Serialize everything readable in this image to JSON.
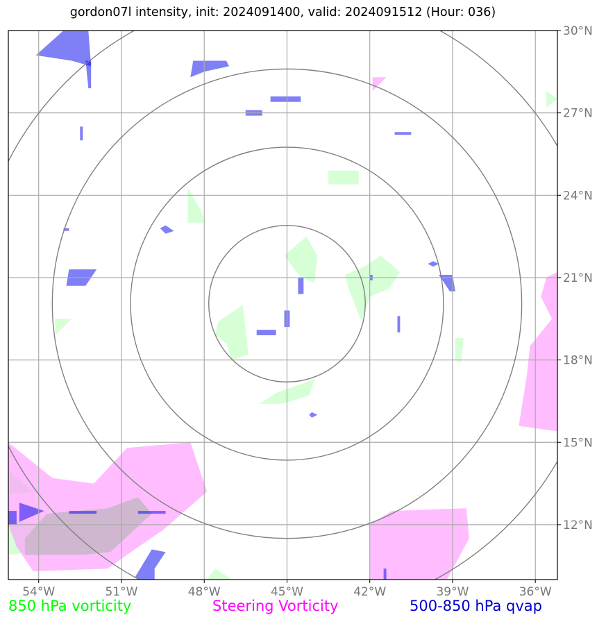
{
  "title": "gordon07l intensity, init: 2024091400, valid: 2024091512 (Hour: 036)",
  "legend": {
    "vort850": "850 hPa vorticity",
    "steering": "Steering Vorticity",
    "qvap": "500-850 hPa qvap"
  },
  "colors": {
    "vort850": "#ccffcc",
    "steering": "#ff99ff",
    "qvap": "#0000ee",
    "grid": "#aaaaaa",
    "rings": "#808080"
  },
  "chart_data": {
    "type": "map",
    "lon_range": [
      -55.1,
      -35.2
    ],
    "lat_range": [
      10.0,
      30.0
    ],
    "x_ticks": [
      "54°W",
      "51°W",
      "48°W",
      "45°W",
      "42°W",
      "39°W",
      "36°W"
    ],
    "x_tick_values": [
      -54,
      -51,
      -48,
      -45,
      -42,
      -39,
      -36
    ],
    "y_ticks": [
      "30°N",
      "27°N",
      "24°N",
      "21°N",
      "18°N",
      "15°N",
      "12°N"
    ],
    "y_tick_values": [
      30,
      27,
      24,
      21,
      18,
      15,
      12
    ],
    "grid": true,
    "center": [
      -45.0,
      20.05
    ],
    "range_rings_deg_lat": [
      2.85,
      5.7,
      8.55,
      11.4
    ],
    "fields": {
      "steering": [
        [
          [
            -55.1,
            15.0
          ],
          [
            -53.5,
            13.7
          ],
          [
            -52.0,
            13.5
          ],
          [
            -50.8,
            14.8
          ],
          [
            -48.5,
            15.0
          ],
          [
            -47.9,
            13.2
          ],
          [
            -49.5,
            11.8
          ],
          [
            -50.8,
            10.9
          ],
          [
            -51.5,
            10.4
          ],
          [
            -54.2,
            10.3
          ],
          [
            -54.8,
            11.2
          ],
          [
            -55.1,
            12.0
          ]
        ],
        [
          [
            -42.0,
            12.0
          ],
          [
            -41.2,
            12.5
          ],
          [
            -38.5,
            12.6
          ],
          [
            -38.4,
            11.5
          ],
          [
            -39.2,
            10.0
          ],
          [
            -42.0,
            10.0
          ]
        ],
        [
          [
            -35.2,
            21.2
          ],
          [
            -35.6,
            21.0
          ],
          [
            -35.8,
            20.3
          ],
          [
            -35.4,
            19.5
          ],
          [
            -36.2,
            18.5
          ],
          [
            -36.3,
            17.5
          ],
          [
            -36.6,
            15.6
          ],
          [
            -35.2,
            15.4
          ]
        ],
        [
          [
            -41.9,
            28.3
          ],
          [
            -41.4,
            28.3
          ],
          [
            -41.9,
            27.8
          ]
        ]
      ],
      "overlap": [
        [
          [
            -54.5,
            11.5
          ],
          [
            -53.7,
            12.4
          ],
          [
            -51.5,
            12.6
          ],
          [
            -50.4,
            13.0
          ],
          [
            -49.9,
            12.4
          ],
          [
            -51.4,
            11.0
          ],
          [
            -52.4,
            10.9
          ],
          [
            -54.5,
            10.9
          ]
        ]
      ],
      "vort850": [
        [
          [
            -45.1,
            21.8
          ],
          [
            -44.3,
            22.5
          ],
          [
            -43.9,
            21.8
          ],
          [
            -44.0,
            20.8
          ],
          [
            -44.5,
            21.0
          ]
        ],
        [
          [
            -42.2,
            21.4
          ],
          [
            -41.6,
            21.8
          ],
          [
            -40.9,
            21.2
          ],
          [
            -41.3,
            20.6
          ],
          [
            -42.0,
            20.3
          ],
          [
            -42.3,
            19.4
          ],
          [
            -42.8,
            20.7
          ],
          [
            -42.9,
            21.1
          ]
        ],
        [
          [
            -47.5,
            19.4
          ],
          [
            -46.6,
            20.0
          ],
          [
            -46.4,
            18.2
          ],
          [
            -47.0,
            18.0
          ],
          [
            -47.2,
            18.6
          ],
          [
            -47.6,
            18.9
          ]
        ],
        [
          [
            -46.0,
            16.4
          ],
          [
            -45.4,
            16.8
          ],
          [
            -44.0,
            17.3
          ],
          [
            -44.2,
            16.7
          ],
          [
            -45.2,
            16.4
          ]
        ],
        [
          [
            -48.6,
            24.3
          ],
          [
            -48.1,
            23.4
          ],
          [
            -48.0,
            23.0
          ],
          [
            -48.6,
            23.0
          ]
        ],
        [
          [
            -43.5,
            24.9
          ],
          [
            -42.4,
            24.9
          ],
          [
            -42.4,
            24.4
          ],
          [
            -43.5,
            24.4
          ]
        ],
        [
          [
            -55.1,
            14.0
          ],
          [
            -54.2,
            13.2
          ],
          [
            -55.1,
            13.1
          ]
        ],
        [
          [
            -55.1,
            12.2
          ],
          [
            -53.9,
            12.0
          ],
          [
            -54.2,
            11.0
          ],
          [
            -55.1,
            10.9
          ]
        ],
        [
          [
            -53.4,
            19.5
          ],
          [
            -52.8,
            19.5
          ],
          [
            -53.4,
            18.9
          ]
        ],
        [
          [
            -38.9,
            18.8
          ],
          [
            -38.6,
            18.8
          ],
          [
            -38.7,
            17.9
          ],
          [
            -38.9,
            18.0
          ]
        ],
        [
          [
            -47.6,
            10.4
          ],
          [
            -47.0,
            10.0
          ],
          [
            -47.9,
            10.0
          ]
        ],
        [
          [
            -35.6,
            27.8
          ],
          [
            -35.2,
            27.5
          ],
          [
            -35.6,
            27.2
          ]
        ]
      ],
      "qvap": [
        [
          [
            -54.1,
            29.1
          ],
          [
            -53.1,
            30.0
          ],
          [
            -52.2,
            30.0
          ],
          [
            -52.1,
            28.7
          ],
          [
            -52.8,
            28.9
          ]
        ],
        [
          [
            -52.3,
            28.9
          ],
          [
            -52.1,
            28.9
          ],
          [
            -52.1,
            27.9
          ],
          [
            -52.2,
            27.9
          ]
        ],
        [
          [
            -48.4,
            28.9
          ],
          [
            -47.2,
            28.9
          ],
          [
            -47.1,
            28.7
          ],
          [
            -48.0,
            28.5
          ],
          [
            -48.5,
            28.3
          ]
        ],
        [
          [
            -45.6,
            27.6
          ],
          [
            -44.5,
            27.6
          ],
          [
            -44.5,
            27.4
          ],
          [
            -45.6,
            27.4
          ]
        ],
        [
          [
            -46.5,
            27.1
          ],
          [
            -45.9,
            27.1
          ],
          [
            -45.9,
            26.9
          ],
          [
            -46.5,
            26.9
          ]
        ],
        [
          [
            -41.1,
            26.3
          ],
          [
            -40.5,
            26.3
          ],
          [
            -40.5,
            26.2
          ],
          [
            -41.1,
            26.2
          ]
        ],
        [
          [
            -52.9,
            21.3
          ],
          [
            -51.9,
            21.3
          ],
          [
            -52.3,
            20.7
          ],
          [
            -53.0,
            20.7
          ]
        ],
        [
          [
            -54.7,
            12.8
          ],
          [
            -53.8,
            12.5
          ],
          [
            -54.7,
            12.1
          ]
        ],
        [
          [
            -52.9,
            12.5
          ],
          [
            -51.9,
            12.5
          ],
          [
            -51.9,
            12.4
          ],
          [
            -52.9,
            12.4
          ]
        ],
        [
          [
            -50.4,
            12.5
          ],
          [
            -49.4,
            12.5
          ],
          [
            -49.4,
            12.4
          ],
          [
            -50.4,
            12.4
          ]
        ],
        [
          [
            -50.5,
            10.1
          ],
          [
            -49.9,
            11.1
          ],
          [
            -49.4,
            11.0
          ],
          [
            -49.8,
            10.4
          ],
          [
            -49.8,
            10.0
          ],
          [
            -50.4,
            10.0
          ]
        ],
        [
          [
            -39.5,
            21.1
          ],
          [
            -39.0,
            21.1
          ],
          [
            -38.9,
            20.5
          ],
          [
            -39.1,
            20.5
          ]
        ],
        [
          [
            -45.1,
            19.8
          ],
          [
            -44.9,
            19.8
          ],
          [
            -44.9,
            19.2
          ],
          [
            -45.1,
            19.2
          ]
        ],
        [
          [
            -44.6,
            21.0
          ],
          [
            -44.4,
            21.0
          ],
          [
            -44.4,
            20.4
          ],
          [
            -44.6,
            20.4
          ]
        ],
        [
          [
            -41.0,
            19.6
          ],
          [
            -40.9,
            19.6
          ],
          [
            -40.9,
            19.0
          ],
          [
            -41.0,
            19.0
          ]
        ],
        [
          [
            -46.1,
            19.1
          ],
          [
            -45.4,
            19.1
          ],
          [
            -45.4,
            18.9
          ],
          [
            -46.1,
            18.9
          ]
        ],
        [
          [
            -49.4,
            22.9
          ],
          [
            -49.1,
            22.7
          ],
          [
            -49.4,
            22.6
          ],
          [
            -49.6,
            22.8
          ]
        ],
        [
          [
            -39.7,
            21.6
          ],
          [
            -39.5,
            21.5
          ],
          [
            -39.7,
            21.4
          ],
          [
            -39.9,
            21.5
          ]
        ],
        [
          [
            -53.1,
            22.8
          ],
          [
            -52.9,
            22.8
          ],
          [
            -52.9,
            22.7
          ],
          [
            -53.1,
            22.7
          ]
        ],
        [
          [
            -55.1,
            12.5
          ],
          [
            -54.8,
            12.5
          ],
          [
            -54.8,
            12.0
          ],
          [
            -55.1,
            12.0
          ]
        ],
        [
          [
            -52.5,
            26.5
          ],
          [
            -52.4,
            26.5
          ],
          [
            -52.4,
            26.0
          ],
          [
            -52.5,
            26.0
          ]
        ],
        [
          [
            -44.1,
            16.1
          ],
          [
            -43.9,
            16.0
          ],
          [
            -44.1,
            15.9
          ],
          [
            -44.2,
            16.0
          ]
        ],
        [
          [
            -41.5,
            10.4
          ],
          [
            -41.4,
            10.4
          ],
          [
            -41.4,
            10.0
          ],
          [
            -41.5,
            10.0
          ]
        ],
        [
          [
            -42.0,
            21.1
          ],
          [
            -41.9,
            21.1
          ],
          [
            -41.9,
            20.9
          ],
          [
            -42.0,
            20.9
          ]
        ]
      ]
    }
  }
}
